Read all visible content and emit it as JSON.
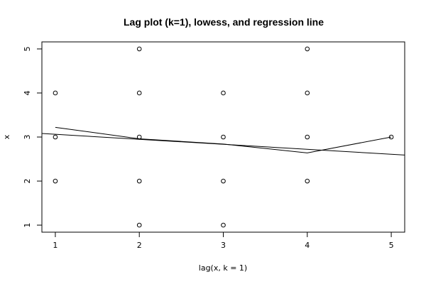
{
  "chart_data": {
    "type": "scatter",
    "title": "Lag plot (k=1), lowess, and regression line",
    "xlabel": "lag(x, k = 1)",
    "ylabel": "x",
    "xlim": [
      0.84,
      5.16
    ],
    "ylim": [
      0.84,
      5.16
    ],
    "x_ticks": [
      1,
      2,
      3,
      4,
      5
    ],
    "y_ticks": [
      1,
      2,
      3,
      4,
      5
    ],
    "grid": false,
    "points": [
      {
        "x": 1,
        "y": 4
      },
      {
        "x": 1,
        "y": 3
      },
      {
        "x": 1,
        "y": 2
      },
      {
        "x": 2,
        "y": 5
      },
      {
        "x": 2,
        "y": 4
      },
      {
        "x": 2,
        "y": 3
      },
      {
        "x": 2,
        "y": 2
      },
      {
        "x": 2,
        "y": 1
      },
      {
        "x": 3,
        "y": 4
      },
      {
        "x": 3,
        "y": 3
      },
      {
        "x": 3,
        "y": 2
      },
      {
        "x": 3,
        "y": 1
      },
      {
        "x": 4,
        "y": 5
      },
      {
        "x": 4,
        "y": 4
      },
      {
        "x": 4,
        "y": 3
      },
      {
        "x": 4,
        "y": 2
      },
      {
        "x": 5,
        "y": 3
      }
    ],
    "lowess": [
      {
        "x": 1,
        "y": 3.22
      },
      {
        "x": 2,
        "y": 2.96
      },
      {
        "x": 3,
        "y": 2.84
      },
      {
        "x": 4,
        "y": 2.64
      },
      {
        "x": 5,
        "y": 3.0
      }
    ],
    "regression": [
      {
        "x": 0.84,
        "y": 3.08
      },
      {
        "x": 5.16,
        "y": 2.59
      }
    ]
  }
}
